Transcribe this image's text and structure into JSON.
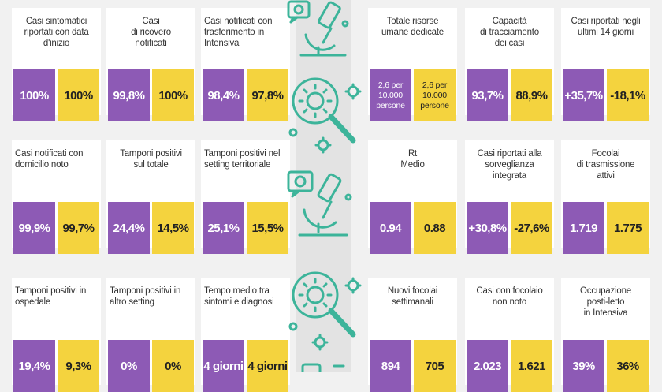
{
  "colors": {
    "purple": "#8d5ab5",
    "yellow": "#f4d33e",
    "icon_teal": "#3cb49a"
  },
  "icons": [
    "microscope-icon",
    "virus-magnifier-icon",
    "microscope-icon",
    "virus-magnifier-icon",
    "microscope-icon"
  ],
  "cards": [
    {
      "title": "Casi sintomatici\nriportati con data\nd'inizio",
      "a": "100%",
      "b": "100%"
    },
    {
      "title": "Casi\ndi ricovero\nnotificati",
      "a": "99,8%",
      "b": "100%"
    },
    {
      "title": "Casi notificati con\ntrasferimento in\nIntensiva",
      "a": "98,4%",
      "b": "97,8%"
    },
    {
      "title": "Totale risorse\numane dedicate",
      "a": "2,6 per\n10.000\npersone",
      "b": "2,6 per\n10.000\npersone"
    },
    {
      "title": "Capacità\ndi tracciamento\ndei casi",
      "a": "93,7%",
      "b": "88,9%"
    },
    {
      "title": "Casi riportati negli\nultimi 14 giorni",
      "a": "+35,7%",
      "b": "-18,1%"
    },
    {
      "title": "Casi notificati con\ndomicilio noto",
      "a": "99,9%",
      "b": "99,7%"
    },
    {
      "title": "Tamponi positivi\nsul totale",
      "a": "24,4%",
      "b": "14,5%"
    },
    {
      "title": "Tamponi positivi nel\nsetting territoriale",
      "a": "25,1%",
      "b": "15,5%"
    },
    {
      "title": "Rt\nMedio",
      "a": "0.94",
      "b": "0.88"
    },
    {
      "title": "Casi riportati alla\nsorveglianza\nintegrata",
      "a": "+30,8%",
      "b": "-27,6%"
    },
    {
      "title": "Focolai\ndi trasmissione\nattivi",
      "a": "1.719",
      "b": "1.775"
    },
    {
      "title": "Tamponi positivi in\nospedale",
      "a": "19,4%",
      "b": "9,3%"
    },
    {
      "title": "Tamponi positivi in\naltro setting",
      "a": "0%",
      "b": "0%"
    },
    {
      "title": "Tempo medio tra\nsintomi e diagnosi",
      "a": "4 giorni",
      "b": "4 giorni"
    },
    {
      "title": "Nuovi focolai\nsettimanali",
      "a": "894",
      "b": "705"
    },
    {
      "title": "Casi con focolaio\nnon noto",
      "a": "2.023",
      "b": "1.621"
    },
    {
      "title": "Occupazione\nposti-letto\nin Intensiva",
      "a": "39%",
      "b": "36%"
    }
  ]
}
